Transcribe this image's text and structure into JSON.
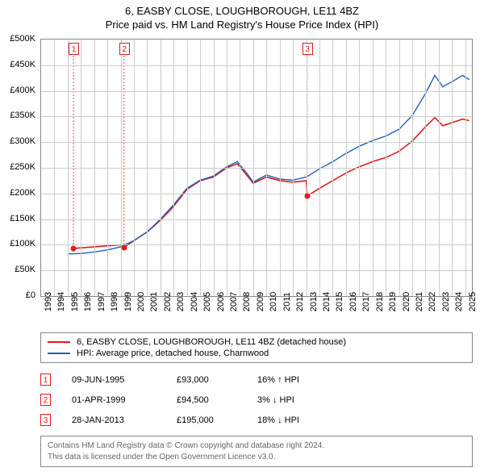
{
  "title": "6, EASBY CLOSE, LOUGHBOROUGH, LE11 4BZ",
  "subtitle": "Price paid vs. HM Land Registry's House Price Index (HPI)",
  "chart": {
    "type": "line",
    "plot_bg": "#ffffff",
    "grid_color": "#cccccc",
    "border_color": "#888888",
    "x": {
      "min": 1993,
      "max": 2025.5,
      "ticks": [
        1993,
        1994,
        1995,
        1996,
        1997,
        1998,
        1999,
        2000,
        2001,
        2002,
        2003,
        2004,
        2005,
        2006,
        2007,
        2008,
        2009,
        2010,
        2011,
        2012,
        2013,
        2014,
        2015,
        2016,
        2017,
        2018,
        2019,
        2020,
        2021,
        2022,
        2023,
        2024,
        2025
      ]
    },
    "y": {
      "min": 0,
      "max": 500000,
      "tick_step": 50000,
      "prefix": "£",
      "suffix": "K",
      "divisor": 1000
    },
    "series": [
      {
        "name": "6, EASBY CLOSE, LOUGHBOROUGH, LE11 4BZ (detached house)",
        "color": "#e31a1c",
        "width": 1.6,
        "points": [
          [
            1995.44,
            93000
          ],
          [
            1996,
            94000
          ],
          [
            1997,
            96000
          ],
          [
            1998,
            98000
          ],
          [
            1999,
            100000
          ],
          [
            1999.25,
            94500
          ],
          [
            2000,
            108000
          ],
          [
            2001,
            125000
          ],
          [
            2002,
            148000
          ],
          [
            2003,
            175000
          ],
          [
            2004,
            208000
          ],
          [
            2005,
            225000
          ],
          [
            2006,
            232000
          ],
          [
            2007,
            250000
          ],
          [
            2007.8,
            258000
          ],
          [
            2008.5,
            236000
          ],
          [
            2009,
            220000
          ],
          [
            2010,
            232000
          ],
          [
            2011,
            225000
          ],
          [
            2012,
            222000
          ],
          [
            2013,
            225000
          ],
          [
            2013.07,
            195000
          ],
          [
            2014,
            210000
          ],
          [
            2015,
            225000
          ],
          [
            2016,
            240000
          ],
          [
            2017,
            252000
          ],
          [
            2018,
            262000
          ],
          [
            2019,
            270000
          ],
          [
            2020,
            282000
          ],
          [
            2021,
            302000
          ],
          [
            2022,
            330000
          ],
          [
            2022.7,
            348000
          ],
          [
            2023.3,
            332000
          ],
          [
            2024,
            338000
          ],
          [
            2024.8,
            345000
          ],
          [
            2025.3,
            342000
          ]
        ]
      },
      {
        "name": "HPI: Average price, detached house, Charnwood",
        "color": "#1f5fbf",
        "width": 1.4,
        "points": [
          [
            1995,
            82000
          ],
          [
            1996,
            83000
          ],
          [
            1997,
            86000
          ],
          [
            1998,
            90000
          ],
          [
            1999,
            96000
          ],
          [
            2000,
            108000
          ],
          [
            2001,
            125000
          ],
          [
            2002,
            150000
          ],
          [
            2003,
            178000
          ],
          [
            2004,
            210000
          ],
          [
            2005,
            226000
          ],
          [
            2006,
            234000
          ],
          [
            2007,
            252000
          ],
          [
            2007.8,
            262000
          ],
          [
            2008.5,
            240000
          ],
          [
            2009,
            222000
          ],
          [
            2010,
            236000
          ],
          [
            2011,
            228000
          ],
          [
            2012,
            226000
          ],
          [
            2013,
            232000
          ],
          [
            2014,
            248000
          ],
          [
            2015,
            262000
          ],
          [
            2016,
            278000
          ],
          [
            2017,
            292000
          ],
          [
            2018,
            303000
          ],
          [
            2019,
            312000
          ],
          [
            2020,
            325000
          ],
          [
            2021,
            352000
          ],
          [
            2022,
            395000
          ],
          [
            2022.7,
            430000
          ],
          [
            2023.3,
            408000
          ],
          [
            2024,
            418000
          ],
          [
            2024.8,
            430000
          ],
          [
            2025.3,
            422000
          ]
        ]
      }
    ],
    "event_markers": [
      {
        "n": "1",
        "x": 1995.44,
        "y": 93000,
        "color": "#e31a1c"
      },
      {
        "n": "2",
        "x": 1999.25,
        "y": 94500,
        "color": "#e31a1c"
      },
      {
        "n": "3",
        "x": 2013.07,
        "y": 195000,
        "color": "#e31a1c"
      }
    ]
  },
  "legend": {
    "items": [
      {
        "color": "#e31a1c",
        "label": "6, EASBY CLOSE, LOUGHBOROUGH, LE11 4BZ (detached house)"
      },
      {
        "color": "#1f5fbf",
        "label": "HPI: Average price, detached house, Charnwood"
      }
    ]
  },
  "sales": [
    {
      "n": "1",
      "date": "09-JUN-1995",
      "price": "£93,000",
      "delta": "16%",
      "arrow": "↑",
      "suffix": "HPI",
      "color": "#e31a1c"
    },
    {
      "n": "2",
      "date": "01-APR-1999",
      "price": "£94,500",
      "delta": "3%",
      "arrow": "↓",
      "suffix": "HPI",
      "color": "#e31a1c"
    },
    {
      "n": "3",
      "date": "28-JAN-2013",
      "price": "£195,000",
      "delta": "18%",
      "arrow": "↓",
      "suffix": "HPI",
      "color": "#e31a1c"
    }
  ],
  "footer": {
    "line1": "Contains HM Land Registry data © Crown copyright and database right 2024.",
    "line2": "This data is licensed under the Open Government Licence v3.0."
  }
}
